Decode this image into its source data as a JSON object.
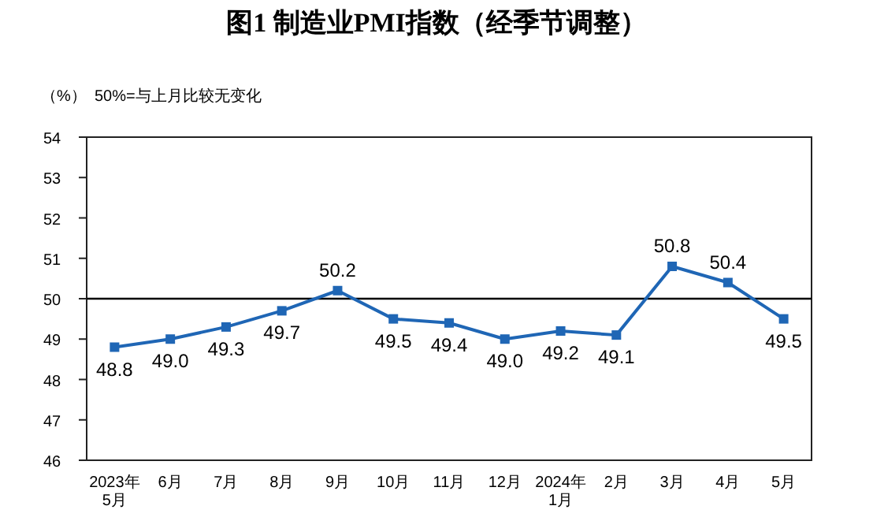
{
  "chart_data": {
    "type": "line",
    "title": "图1  制造业PMI指数（经季节调整）",
    "annotations": [
      "（%）",
      "50%=与上月比较无变化"
    ],
    "categories": [
      "2023年\n5月",
      "6月",
      "7月",
      "8月",
      "9月",
      "10月",
      "11月",
      "12月",
      "2024年\n1月",
      "2月",
      "3月",
      "4月",
      "5月"
    ],
    "series": [
      {
        "color": "#1f66b5",
        "values": [
          48.8,
          49.0,
          49.3,
          49.7,
          50.2,
          49.5,
          49.4,
          49.0,
          49.2,
          49.1,
          50.8,
          50.4,
          49.5
        ],
        "value_labels": [
          "48.8",
          "49.0",
          "49.3",
          "49.7",
          "50.2",
          "49.5",
          "49.4",
          "49.0",
          "49.2",
          "49.1",
          "50.8",
          "50.4",
          "49.5"
        ]
      }
    ],
    "ylim": [
      46,
      54
    ],
    "yticks": [
      46,
      47,
      48,
      49,
      50,
      51,
      52,
      53,
      54
    ],
    "ref_lines": [
      {
        "axis": "y",
        "value": 50,
        "color": "#000000"
      }
    ],
    "marker": "square",
    "line_style": "solid",
    "grid": false
  }
}
